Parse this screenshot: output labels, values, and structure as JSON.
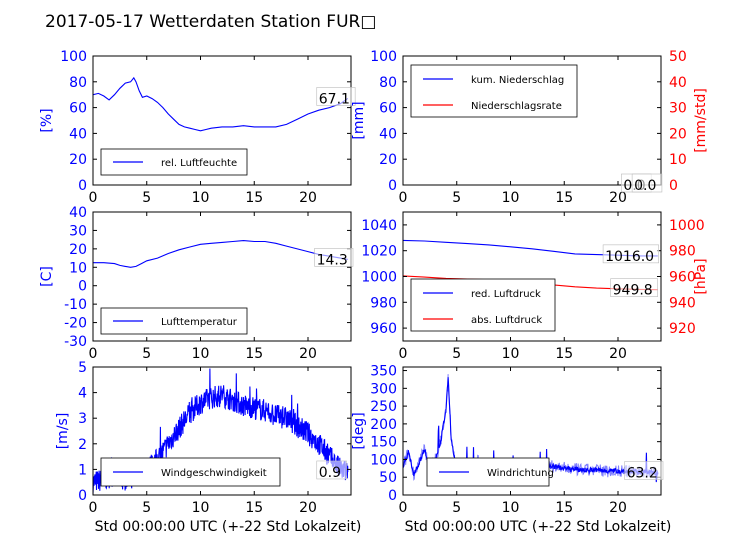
{
  "title": "2017-05-17 Wetterdaten Station FUR□",
  "colors": {
    "blue": "#0000ff",
    "red": "#ff0000",
    "light_blue": "#8080ff",
    "axes": "#000000"
  },
  "chart_data": [
    {
      "id": "humidity",
      "type": "line",
      "xlim": [
        0,
        24
      ],
      "xticks": [
        0,
        5,
        10,
        15,
        20
      ],
      "ylim": [
        0,
        100
      ],
      "yticks": [
        0,
        20,
        40,
        60,
        80,
        100
      ],
      "ylabel": "[%]",
      "xlabel": "",
      "legend_position": "lower-left",
      "annotations": [
        "67.1"
      ],
      "series": [
        {
          "name": "rel. Luftfeuchte",
          "color": "#0000ff",
          "x": [
            0,
            0.5,
            1,
            1.5,
            2,
            2.5,
            3,
            3.5,
            3.8,
            4,
            4.3,
            4.6,
            5,
            5.5,
            6,
            6.5,
            7,
            7.5,
            8,
            8.5,
            9,
            9.5,
            10,
            10.5,
            11,
            12,
            13,
            14,
            15,
            16,
            17,
            18,
            19,
            20,
            21,
            22,
            23,
            23.7
          ],
          "y": [
            70,
            71,
            69,
            66,
            70,
            75,
            79,
            80,
            83,
            80,
            73,
            68,
            69,
            67,
            64,
            60,
            55,
            51,
            47,
            45,
            44,
            43,
            42,
            43,
            44,
            45,
            45,
            46,
            45,
            45,
            45,
            47,
            51,
            55,
            58,
            60,
            63,
            67.1
          ]
        }
      ]
    },
    {
      "id": "precipitation",
      "type": "line",
      "xlim": [
        0,
        24
      ],
      "xticks": [
        0,
        5,
        10,
        15,
        20
      ],
      "ylim": [
        0,
        100
      ],
      "yticks": [
        0,
        20,
        40,
        60,
        80,
        100
      ],
      "ylabel": "[mm]",
      "y2lim": [
        0,
        50
      ],
      "y2ticks": [
        0,
        10,
        20,
        30,
        40,
        50
      ],
      "y2label": "[mm/std]",
      "legend_position": "upper-left",
      "annotations": [
        "0.0",
        "0.0"
      ],
      "series": [
        {
          "name": "kum. Niederschlag",
          "color": "#0000ff",
          "x": [
            0,
            24
          ],
          "y": [
            0,
            0
          ]
        },
        {
          "name": "Niederschlagsrate",
          "color": "#ff0000",
          "axis": "right",
          "x": [
            0,
            24
          ],
          "y": [
            0,
            0
          ]
        }
      ]
    },
    {
      "id": "temperature",
      "type": "line",
      "xlim": [
        0,
        24
      ],
      "xticks": [
        0,
        5,
        10,
        15,
        20
      ],
      "ylim": [
        -30,
        40
      ],
      "yticks": [
        -30,
        -20,
        -10,
        0,
        10,
        20,
        30,
        40
      ],
      "ylabel": "[C]",
      "legend_position": "lower-left",
      "annotations": [
        "14.3"
      ],
      "series": [
        {
          "name": "Lufttemperatur",
          "color": "#0000ff",
          "x": [
            0,
            1,
            2,
            2.5,
            3,
            3.5,
            4,
            4.5,
            5,
            6,
            7,
            8,
            9,
            10,
            11,
            12,
            13,
            14,
            15,
            16,
            17,
            18,
            19,
            20,
            21,
            22,
            23,
            23.7
          ],
          "y": [
            12.5,
            12.5,
            12,
            11,
            10.5,
            10,
            10.5,
            12,
            13.5,
            15,
            17.5,
            19.5,
            21,
            22.5,
            23,
            23.5,
            24,
            24.5,
            24,
            24,
            23,
            21.5,
            20,
            18.5,
            17,
            16,
            15,
            14.3
          ]
        }
      ]
    },
    {
      "id": "pressure",
      "type": "line",
      "xlim": [
        0,
        24
      ],
      "xticks": [
        0,
        5,
        10,
        15,
        20
      ],
      "ylim": [
        950,
        1050
      ],
      "yticks": [
        960,
        980,
        1000,
        1020,
        1040
      ],
      "ylabel": "",
      "y2lim": [
        910,
        1010
      ],
      "y2ticks": [
        920,
        940,
        960,
        980,
        1000
      ],
      "y2label": "[hPa]",
      "legend_position": "lower-left",
      "annotations": [
        "1016.0",
        "949.8"
      ],
      "series": [
        {
          "name": "red. Luftdruck",
          "color": "#0000ff",
          "x": [
            0,
            2,
            4,
            6,
            8,
            10,
            12,
            14,
            16,
            18,
            20,
            22,
            23.7
          ],
          "y": [
            1028,
            1027.5,
            1026.5,
            1025.5,
            1024.5,
            1023,
            1021.5,
            1019.5,
            1017.5,
            1017,
            1016.5,
            1016,
            1016
          ]
        },
        {
          "name": "abs. Luftdruck",
          "color": "#ff0000",
          "axis": "right",
          "x": [
            0,
            2,
            4,
            6,
            8,
            10,
            12,
            14,
            16,
            18,
            20,
            22,
            23.7
          ],
          "y": [
            960.5,
            959.5,
            958.5,
            958,
            957.5,
            956.5,
            955,
            953.5,
            952,
            951,
            950.5,
            950,
            949.8
          ]
        }
      ]
    },
    {
      "id": "windspeed",
      "type": "line",
      "xlim": [
        0,
        24
      ],
      "xticks": [
        0,
        5,
        10,
        15,
        20
      ],
      "ylim": [
        0,
        5
      ],
      "yticks": [
        0,
        1,
        2,
        3,
        4,
        5
      ],
      "ylabel": "[m/s]",
      "xlabel": "Std 00:00:00 UTC (+-22 Std Lokalzeit)",
      "legend_position": "lower-left",
      "annotations": [
        "0.9"
      ],
      "series": [
        {
          "name": "Windgeschwindigkeit",
          "color": "#0000ff",
          "x": [
            0,
            1,
            2,
            3,
            4,
            5,
            6,
            7,
            8,
            9,
            10,
            11,
            12,
            13,
            14,
            15,
            16,
            17,
            18,
            19,
            20,
            21,
            22,
            23,
            23.7
          ],
          "y": [
            0.5,
            0.6,
            0.8,
            0.6,
            0.9,
            1.0,
            1.4,
            2.0,
            2.6,
            3.2,
            3.6,
            3.8,
            3.9,
            3.7,
            3.5,
            3.4,
            3.3,
            3.1,
            3.0,
            2.7,
            2.4,
            2.0,
            1.5,
            1.0,
            0.9
          ]
        }
      ]
    },
    {
      "id": "winddirection",
      "type": "line",
      "xlim": [
        0,
        24
      ],
      "xticks": [
        0,
        5,
        10,
        15,
        20
      ],
      "ylim": [
        0,
        360
      ],
      "yticks": [
        0,
        50,
        100,
        150,
        200,
        250,
        300,
        350
      ],
      "ylabel": "[deg]",
      "xlabel": "Std 00:00:00 UTC (+-22 Std Lokalzeit)",
      "legend_position": "lower-left",
      "annotations": [
        "63.2"
      ],
      "series": [
        {
          "name": "Windrichtung",
          "color": "#0000ff",
          "x": [
            0,
            0.5,
            1,
            1.5,
            2,
            2.5,
            3,
            3.5,
            4,
            4.2,
            4.5,
            5,
            5.5,
            6,
            7,
            8,
            9,
            10,
            11,
            12,
            13,
            14,
            15,
            16,
            17,
            18,
            19,
            20,
            21,
            22,
            23,
            23.7
          ],
          "y": [
            80,
            120,
            60,
            90,
            130,
            70,
            100,
            150,
            240,
            330,
            150,
            70,
            80,
            85,
            95,
            90,
            85,
            80,
            85,
            80,
            78,
            80,
            75,
            72,
            70,
            70,
            68,
            68,
            66,
            65,
            64,
            63.2
          ]
        }
      ]
    }
  ]
}
